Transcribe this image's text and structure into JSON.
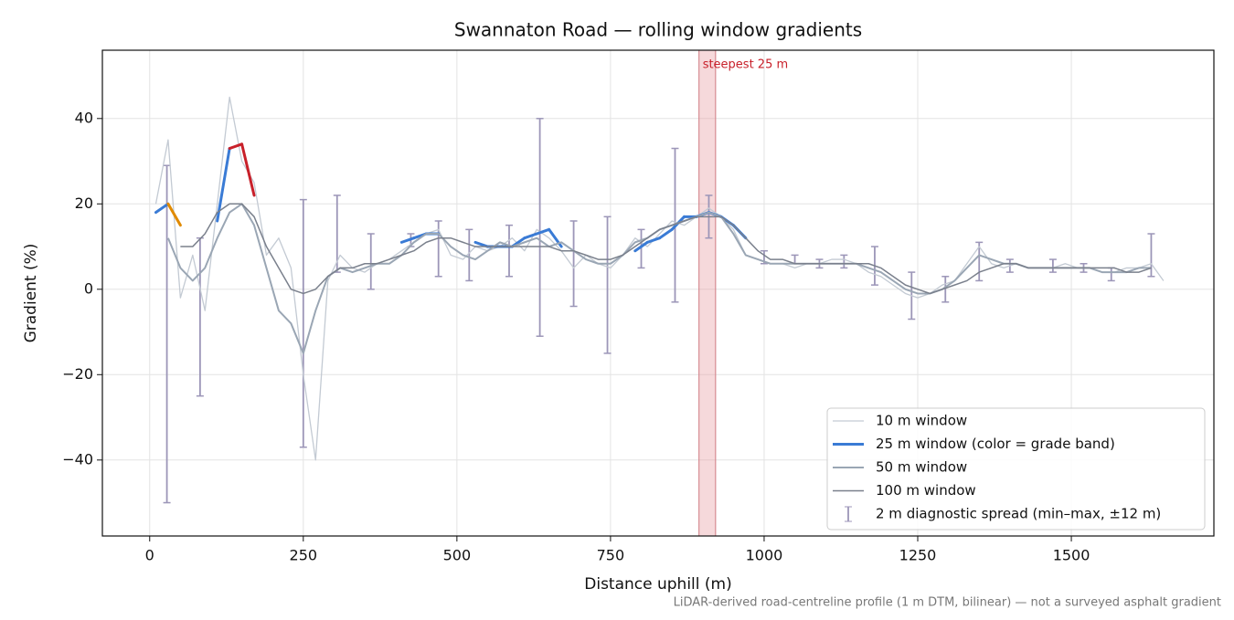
{
  "chart_data": {
    "type": "line",
    "title": "Swannaton Road — rolling window gradients",
    "x_label": "Distance uphill (m)",
    "y_label": "Gradient (%)",
    "footnote": "LiDAR-derived road-centreline profile (1 m DTM, bilinear) — not a surveyed asphalt gradient",
    "xlim": [
      -77,
      1732
    ],
    "ylim": [
      -57.8,
      56
    ],
    "xticks": [
      0,
      250,
      500,
      750,
      1000,
      1250,
      1500
    ],
    "yticks": [
      {
        "value": -40,
        "label": "−40"
      },
      {
        "value": -20,
        "label": "−20"
      },
      0,
      20,
      40
    ],
    "grid": true,
    "legend": "lower right",
    "x": [
      10,
      30,
      50,
      70,
      90,
      110,
      130,
      150,
      170,
      190,
      210,
      230,
      250,
      270,
      290,
      310,
      330,
      350,
      370,
      390,
      410,
      430,
      450,
      470,
      490,
      510,
      530,
      550,
      570,
      590,
      610,
      630,
      650,
      670,
      690,
      710,
      730,
      750,
      770,
      790,
      810,
      830,
      850,
      870,
      890,
      910,
      930,
      950,
      970,
      990,
      1010,
      1030,
      1050,
      1070,
      1090,
      1110,
      1130,
      1150,
      1170,
      1190,
      1210,
      1230,
      1250,
      1270,
      1290,
      1310,
      1330,
      1350,
      1370,
      1390,
      1410,
      1430,
      1450,
      1470,
      1490,
      1510,
      1530,
      1550,
      1570,
      1590,
      1610,
      1630,
      1650
    ],
    "series": [
      {
        "name": "10 m window",
        "color": "#c3cad3",
        "width": 1.3,
        "values": [
          20,
          35,
          -2,
          8,
          -5,
          20,
          45,
          30,
          25,
          8,
          12,
          5,
          -20,
          -40,
          2,
          8,
          5,
          4,
          6,
          7,
          9,
          11,
          13,
          14,
          8,
          7,
          10,
          9,
          10,
          12,
          9,
          14,
          12,
          9,
          5,
          8,
          6,
          5,
          8,
          12,
          10,
          13,
          16,
          15,
          17,
          19,
          17,
          14,
          8,
          7,
          6,
          6,
          5,
          6,
          6,
          7,
          7,
          6,
          4,
          3,
          1,
          -1,
          -2,
          -1,
          1,
          2,
          6,
          10,
          6,
          5,
          6,
          5,
          5,
          5,
          6,
          5,
          5,
          4,
          4,
          5,
          5,
          6,
          2
        ]
      },
      {
        "name": "25 m window (color = grade band)",
        "color": "#3a7bd5",
        "width": 3,
        "values": [
          18,
          20,
          15,
          null,
          null,
          16,
          33,
          34,
          22,
          null,
          null,
          null,
          null,
          null,
          null,
          null,
          null,
          null,
          null,
          null,
          11,
          12,
          13,
          13,
          null,
          null,
          11,
          10,
          10,
          10,
          12,
          13,
          14,
          10,
          null,
          null,
          null,
          null,
          null,
          9,
          11,
          12,
          14,
          17,
          17,
          18,
          17,
          15,
          12,
          null,
          null,
          null,
          null,
          null,
          null,
          null,
          null,
          null,
          null,
          null,
          null,
          null,
          null,
          null,
          null,
          null,
          null,
          null,
          null,
          null,
          null,
          null,
          null,
          null,
          null,
          null,
          null,
          null,
          null,
          null,
          null,
          null,
          null
        ],
        "point_colors": [
          "#3a7bd5",
          "#e08a00",
          "#3a7bd5",
          null,
          null,
          "#3a7bd5",
          "#c8202a",
          "#c8202a",
          "#e08a00",
          null,
          null,
          null,
          null,
          null,
          null,
          null,
          null,
          null,
          null,
          null,
          "#3a7bd5",
          "#3a7bd5",
          "#3a7bd5",
          "#3a7bd5",
          null,
          null,
          "#3a7bd5",
          "#3a7bd5",
          "#3a7bd5",
          "#3a7bd5",
          "#3a7bd5",
          "#3a7bd5",
          "#3a7bd5",
          "#3a7bd5",
          null,
          null,
          null,
          null,
          null,
          "#3a7bd5",
          "#3a7bd5",
          "#3a7bd5",
          "#3a7bd5",
          "#3a7bd5",
          "#3a7bd5",
          "#3a7bd5",
          "#3a7bd5",
          "#3a7bd5",
          "#3a7bd5",
          null,
          null,
          null,
          null,
          null,
          null,
          null,
          null,
          null,
          null,
          null,
          null,
          null,
          null,
          null,
          null,
          null,
          null,
          null,
          null,
          null,
          null,
          null,
          null,
          null,
          null,
          null,
          null,
          null,
          null,
          null,
          null,
          null,
          null
        ]
      },
      {
        "name": "50 m window",
        "color": "#9aa6b4",
        "width": 2,
        "values": [
          null,
          12,
          5,
          2,
          5,
          12,
          18,
          20,
          15,
          5,
          -5,
          -8,
          -15,
          -5,
          3,
          5,
          4,
          5,
          6,
          6,
          8,
          11,
          13,
          13,
          10,
          8,
          7,
          9,
          11,
          10,
          11,
          12,
          10,
          11,
          9,
          7,
          6,
          6,
          8,
          11,
          12,
          14,
          15,
          16,
          17,
          18,
          17,
          13,
          8,
          7,
          6,
          6,
          6,
          6,
          6,
          6,
          6,
          6,
          5,
          4,
          2,
          0,
          -1,
          -1,
          0,
          2,
          5,
          8,
          7,
          6,
          6,
          5,
          5,
          5,
          5,
          5,
          5,
          4,
          4,
          4,
          5,
          5,
          null
        ]
      },
      {
        "name": "100 m window",
        "color": "#7a808c",
        "width": 1.5,
        "values": [
          null,
          null,
          10,
          10,
          13,
          18,
          20,
          20,
          17,
          10,
          5,
          0,
          -1,
          0,
          3,
          5,
          5,
          6,
          6,
          7,
          8,
          9,
          11,
          12,
          12,
          11,
          10,
          10,
          10,
          10,
          10,
          10,
          10,
          9,
          9,
          8,
          7,
          7,
          8,
          10,
          12,
          14,
          15,
          16,
          17,
          17,
          17,
          15,
          12,
          9,
          7,
          7,
          6,
          6,
          6,
          6,
          6,
          6,
          6,
          5,
          3,
          1,
          0,
          -1,
          0,
          1,
          2,
          4,
          5,
          6,
          6,
          5,
          5,
          5,
          5,
          5,
          5,
          5,
          5,
          4,
          4,
          5,
          null
        ]
      }
    ],
    "errorbars": {
      "name": "2 m diagnostic spread (min–max, ±12 m)",
      "color": "#9c96b8",
      "x": [
        28,
        82,
        250,
        305,
        360,
        425,
        470,
        520,
        585,
        635,
        690,
        745,
        800,
        855,
        910,
        1000,
        1050,
        1090,
        1130,
        1180,
        1240,
        1295,
        1350,
        1400,
        1470,
        1520,
        1565,
        1630
      ],
      "low": [
        -50,
        -25,
        -37,
        4,
        0,
        10,
        3,
        2,
        3,
        -11,
        -4,
        -15,
        5,
        -3,
        12,
        6,
        6,
        5,
        5,
        1,
        -7,
        -3,
        2,
        4,
        4,
        4,
        2,
        3
      ],
      "high": [
        29,
        12,
        21,
        22,
        13,
        13,
        16,
        14,
        15,
        40,
        16,
        17,
        14,
        33,
        22,
        9,
        8,
        7,
        8,
        10,
        4,
        3,
        11,
        7,
        7,
        6,
        5,
        13
      ]
    },
    "highlight": {
      "label": "steepest 25 m",
      "xlim": [
        894,
        921
      ],
      "color": "#e8a0a6"
    }
  }
}
